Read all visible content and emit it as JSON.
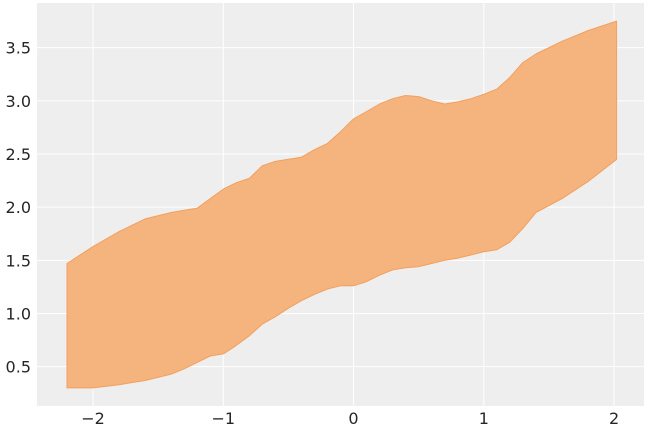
{
  "chart_data": {
    "type": "area",
    "title": "",
    "xlabel": "",
    "ylabel": "",
    "xlim": [
      -2.43,
      2.23
    ],
    "ylim": [
      0.13,
      3.92
    ],
    "grid": true,
    "legend": "none",
    "colors": {
      "background": "#eeeeee",
      "grid": "#ffffff",
      "fill": "#f5b37e",
      "edge": "#f2a05f"
    },
    "x_ticks": [
      {
        "value": -2,
        "label": "−2"
      },
      {
        "value": -1,
        "label": "−1"
      },
      {
        "value": 0,
        "label": "0"
      },
      {
        "value": 1,
        "label": "1"
      },
      {
        "value": 2,
        "label": "2"
      }
    ],
    "y_ticks": [
      {
        "value": 0.5,
        "label": "0.5"
      },
      {
        "value": 1.0,
        "label": "1.0"
      },
      {
        "value": 1.5,
        "label": "1.5"
      },
      {
        "value": 2.0,
        "label": "2.0"
      },
      {
        "value": 2.5,
        "label": "2.5"
      },
      {
        "value": 3.0,
        "label": "3.0"
      },
      {
        "value": 3.5,
        "label": "3.5"
      }
    ],
    "series": [
      {
        "x": [
          -2.2,
          -2.0,
          -1.8,
          -1.6,
          -1.4,
          -1.3,
          -1.2,
          -1.1,
          -1.0,
          -0.9,
          -0.8,
          -0.7,
          -0.6,
          -0.5,
          -0.4,
          -0.3,
          -0.2,
          -0.1,
          0.0,
          0.1,
          0.2,
          0.3,
          0.4,
          0.5,
          0.6,
          0.7,
          0.8,
          0.9,
          1.0,
          1.1,
          1.2,
          1.3,
          1.4,
          1.6,
          1.8,
          2.02
        ],
        "upper": [
          1.47,
          1.63,
          1.77,
          1.89,
          1.95,
          1.97,
          1.99,
          2.08,
          2.17,
          2.23,
          2.27,
          2.39,
          2.43,
          2.45,
          2.47,
          2.54,
          2.6,
          2.71,
          2.83,
          2.9,
          2.97,
          3.02,
          3.05,
          3.04,
          3.0,
          2.97,
          2.99,
          3.02,
          3.06,
          3.11,
          3.22,
          3.36,
          3.44,
          3.56,
          3.66,
          3.75
        ],
        "lower": [
          0.3,
          0.3,
          0.33,
          0.37,
          0.43,
          0.48,
          0.54,
          0.6,
          0.62,
          0.7,
          0.79,
          0.9,
          0.97,
          1.05,
          1.12,
          1.18,
          1.23,
          1.26,
          1.26,
          1.3,
          1.36,
          1.41,
          1.43,
          1.44,
          1.47,
          1.5,
          1.52,
          1.55,
          1.58,
          1.6,
          1.67,
          1.8,
          1.95,
          2.08,
          2.24,
          2.45
        ]
      }
    ]
  }
}
